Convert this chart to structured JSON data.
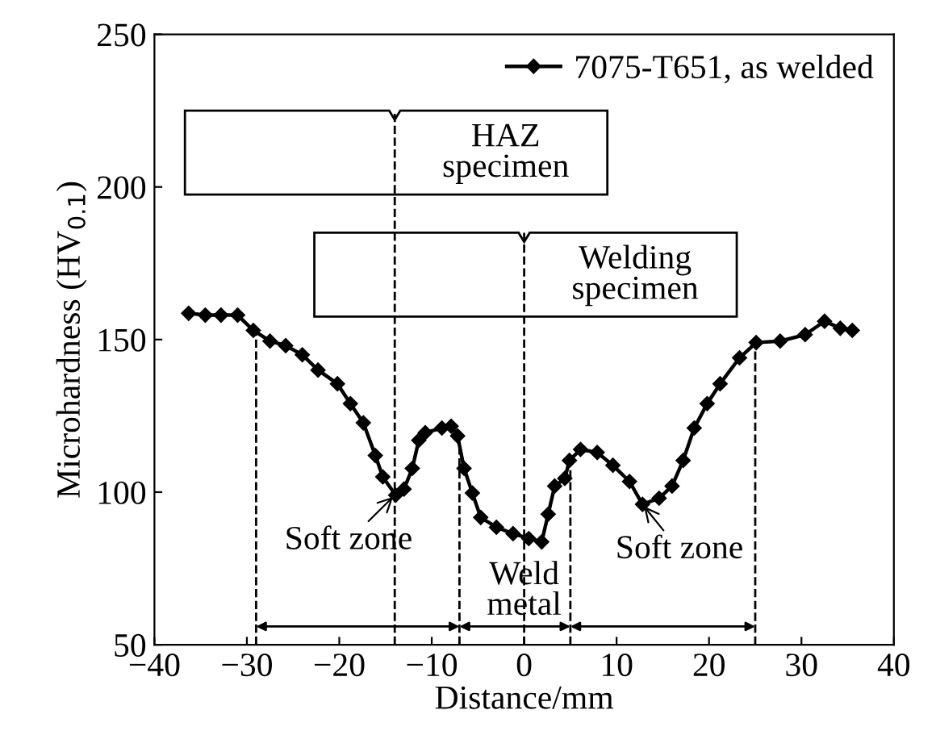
{
  "chart_data": {
    "type": "line",
    "xlabel": "Distance/mm",
    "ylabel": "Microhardness (HV$_{0.1}$)",
    "xlim": [
      -40,
      40
    ],
    "ylim": [
      50,
      250
    ],
    "xticks": [
      -40,
      -30,
      -20,
      -10,
      0,
      10,
      20,
      30,
      40
    ],
    "yticks": [
      50,
      100,
      150,
      200,
      250
    ],
    "grid": false,
    "legend": "top right",
    "marker": "diamond",
    "line_style": "solid",
    "series": [
      {
        "name": "7075-T651, as welded",
        "color": "#000000",
        "x": [
          -36.3,
          -34.5,
          -32.8,
          -31,
          -29.3,
          -27.5,
          -25.8,
          -24,
          -22.3,
          -20.2,
          -18.8,
          -17.4,
          -16.1,
          -15.3,
          -13.9,
          -13,
          -12.1,
          -11.4,
          -10.7,
          -8.9,
          -7.9,
          -7.2,
          -6.5,
          -5.6,
          -4.7,
          -3,
          -1.2,
          0.5,
          1.9,
          2.6,
          3.3,
          4.4,
          4.9,
          6.1,
          7.9,
          9.6,
          11.4,
          12.8,
          14.6,
          16,
          17.2,
          18.4,
          19.8,
          21.2,
          23.3,
          25.1,
          27.7,
          30.4,
          32.5,
          34.2,
          35.5
        ],
        "values": [
          158.6,
          158,
          158,
          158,
          153,
          149.5,
          148,
          145,
          140,
          135.5,
          129,
          122.7,
          112,
          105,
          99,
          101,
          107.8,
          117,
          119.5,
          121,
          121.6,
          118.4,
          107.8,
          99.7,
          91.7,
          88.5,
          86.4,
          84.8,
          83.7,
          92.8,
          102,
          104.5,
          110.4,
          114,
          113,
          108.8,
          103.5,
          96,
          98,
          102,
          110.4,
          121,
          129,
          135.5,
          144,
          149,
          149.5,
          151.6,
          156,
          153.7,
          153
        ]
      }
    ],
    "ref_lines": [
      {
        "axis": "x",
        "value": -29,
        "line_style": "dashed"
      },
      {
        "axis": "x",
        "value": -14,
        "line_style": "dashed"
      },
      {
        "axis": "x",
        "value": -7,
        "line_style": "dashed"
      },
      {
        "axis": "x",
        "value": 0,
        "line_style": "dashed"
      },
      {
        "axis": "x",
        "value": 5,
        "line_style": "dashed"
      },
      {
        "axis": "x",
        "value": 25,
        "line_style": "dashed"
      }
    ],
    "annotations": [
      {
        "text": "Weld\nmetal",
        "x": 0,
        "y": 56
      },
      {
        "text": "Soft zone",
        "x": -14,
        "y": 99
      },
      {
        "text": "Soft zone",
        "x": 12.8,
        "y": 96
      },
      {
        "text": "HAZ\nspecimen",
        "x": -14,
        "y": 225
      },
      {
        "text": "Welding\nspecimen",
        "x": 0,
        "y": 185
      }
    ]
  }
}
